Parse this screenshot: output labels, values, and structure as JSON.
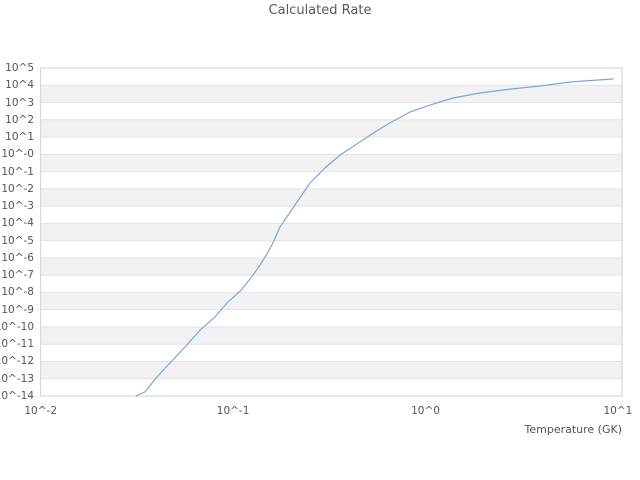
{
  "title": "Calculated Rate",
  "xaxis": {
    "title": "Temperature (GK)",
    "tick_labels": [
      "10^-2",
      "10^-1",
      "10^0",
      "10^1"
    ],
    "tick_log_values": [
      -2,
      -1,
      0,
      1
    ]
  },
  "yaxis": {
    "tick_labels": [
      "10^5",
      "10^4",
      "10^3",
      "10^2",
      "10^1",
      "10^-0",
      "10^-1",
      "10^-2",
      "10^-3",
      "10^-4",
      "10^-5",
      "10^-6",
      "10^-7",
      "10^-8",
      "10^-9",
      "10^-10",
      "10^-11",
      "10^-12",
      "10^-13",
      "10^-14"
    ],
    "tick_exponents": [
      5,
      4,
      3,
      2,
      1,
      0,
      -1,
      -2,
      -3,
      -4,
      -5,
      -6,
      -7,
      -8,
      -9,
      -10,
      -11,
      -12,
      -13,
      -14
    ]
  },
  "colors": {
    "line": "#7aa7dc",
    "band_gray": "#f2f2f2",
    "gridline": "#e3e3e3",
    "border": "#d0d0d0",
    "text": "#555555",
    "background": "#ffffff"
  },
  "chart_data": {
    "type": "line",
    "title": "Calculated Rate",
    "xlabel": "Temperature (GK)",
    "ylabel": "",
    "x_scale": "log",
    "y_scale": "log",
    "xlim_gk": [
      0.01,
      10.5
    ],
    "ylim_exponents": [
      -14,
      5
    ],
    "grid": "horizontal-decade-lines-with-alternating-bands",
    "legend": "none",
    "series": [
      {
        "name": "calculated-rate",
        "temperature_gk": [
          0.0313,
          0.0348,
          0.0402,
          0.047,
          0.0562,
          0.0673,
          0.0805,
          0.0941,
          0.109,
          0.118,
          0.127,
          0.138,
          0.15,
          0.161,
          0.175,
          0.21,
          0.251,
          0.3,
          0.36,
          0.457,
          0.566,
          0.654,
          0.831,
          1.06,
          1.39,
          1.92,
          2.75,
          3.94,
          5.64,
          8.07,
          9.44
        ],
        "log10_rate": [
          -14.0,
          -13.77,
          -12.9,
          -12.09,
          -11.16,
          -10.18,
          -9.42,
          -8.55,
          -7.92,
          -7.45,
          -6.99,
          -6.41,
          -5.77,
          -5.14,
          -4.21,
          -2.93,
          -1.66,
          -0.79,
          -0.04,
          0.72,
          1.41,
          1.82,
          2.45,
          2.86,
          3.26,
          3.55,
          3.78,
          3.96,
          4.19,
          4.31,
          4.37
        ]
      }
    ]
  }
}
